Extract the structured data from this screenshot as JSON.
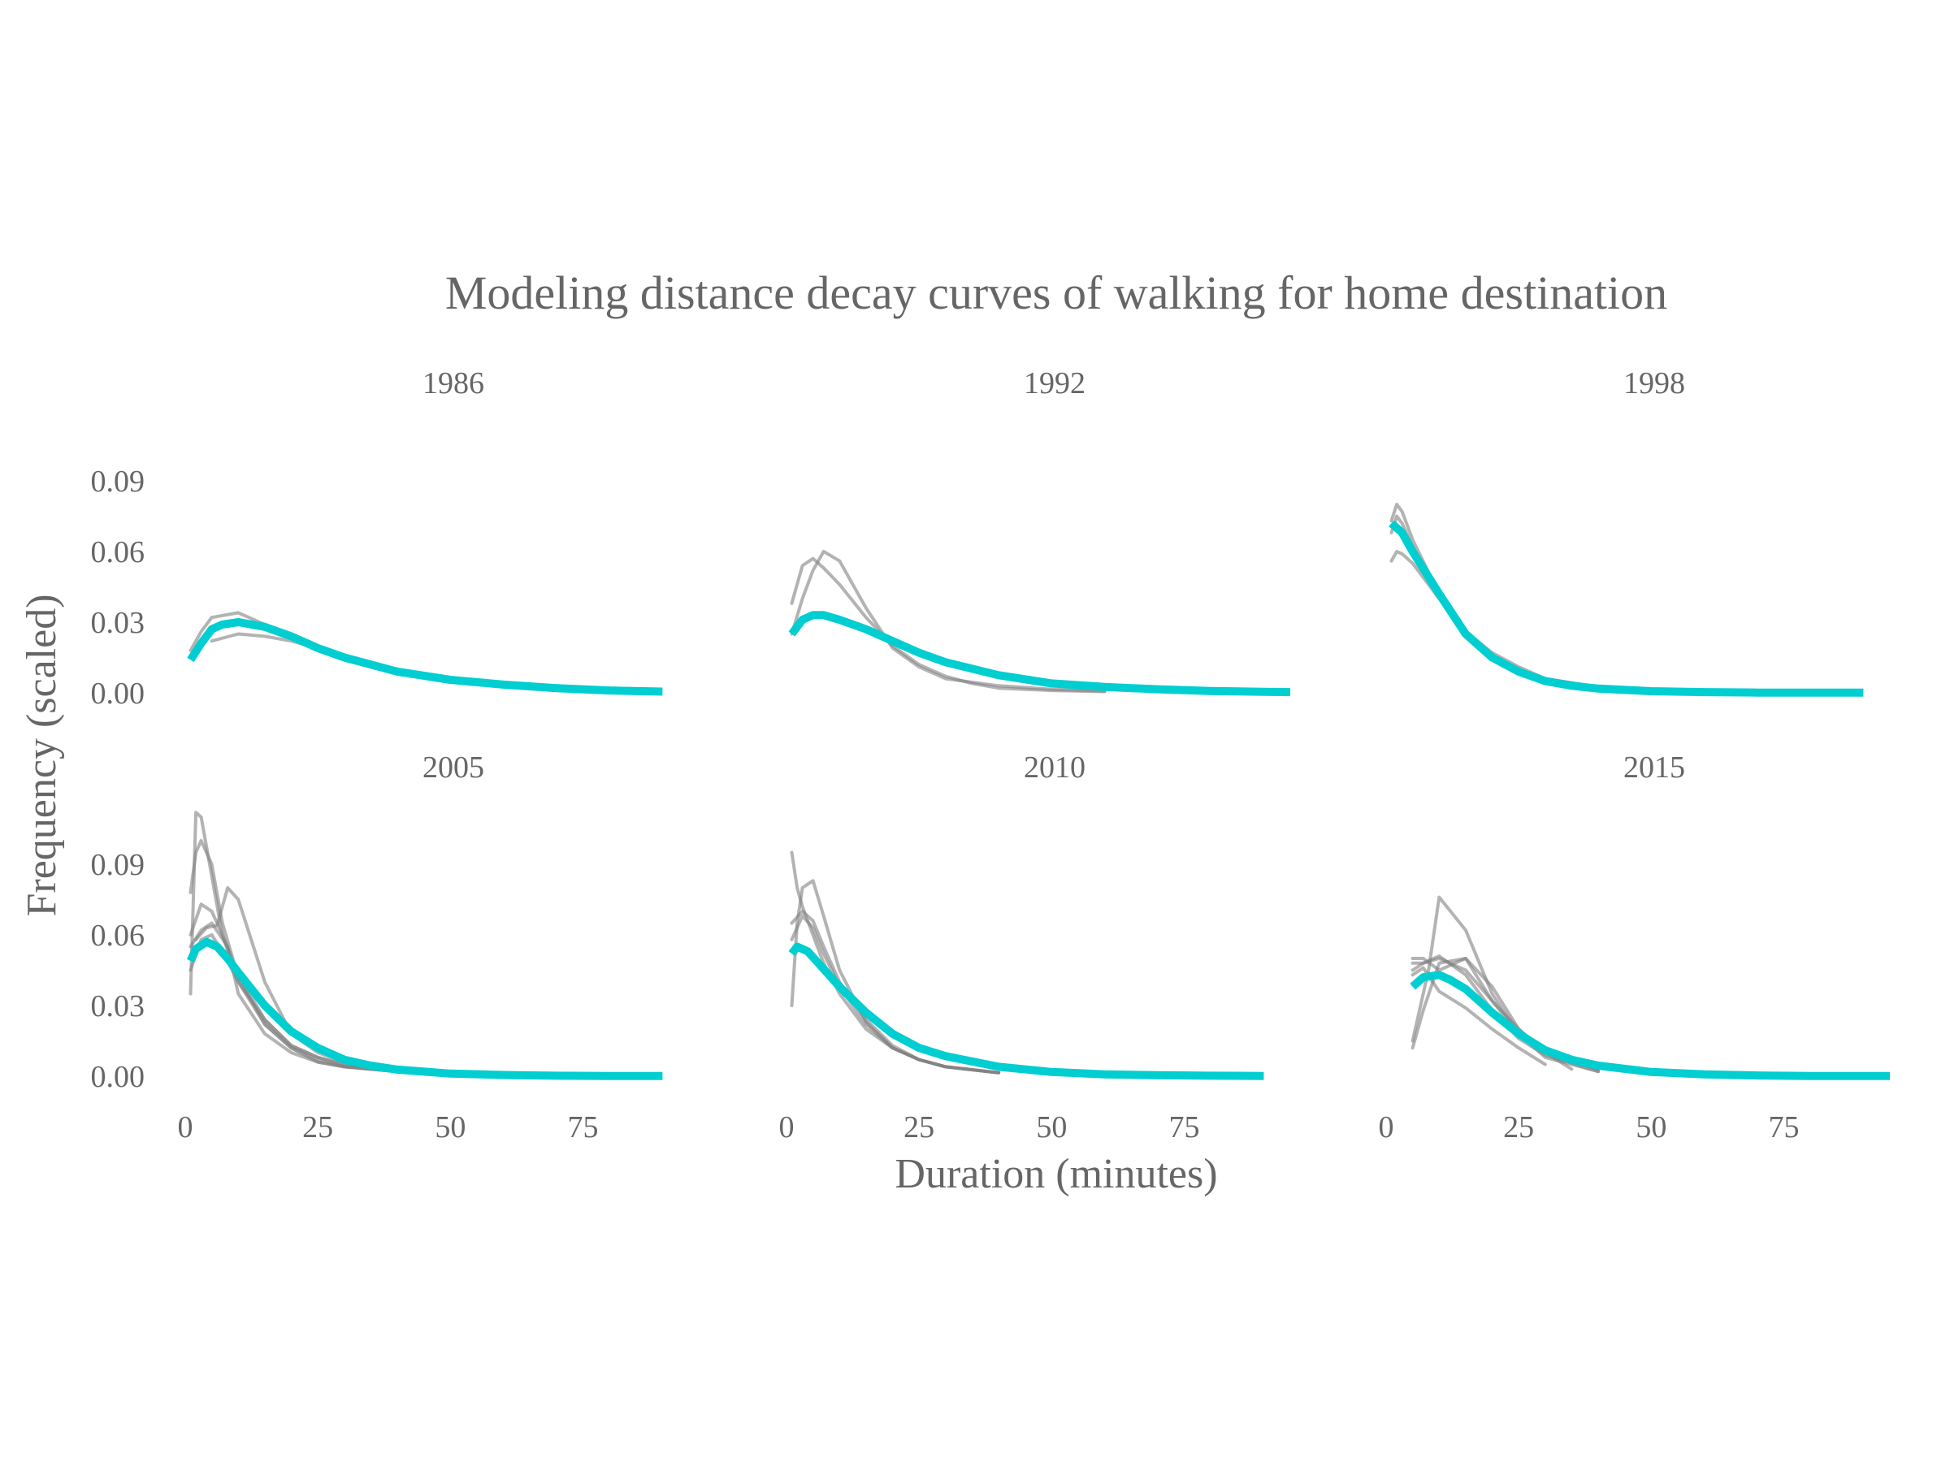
{
  "chart_data": {
    "type": "line",
    "title": "Modeling distance decay curves of walking for home destination",
    "xlabel": "Duration (minutes)",
    "ylabel": "Frequency (scaled)",
    "x_ticks": [
      0,
      25,
      50,
      75
    ],
    "y_ticks": [
      0.0,
      0.03,
      0.06,
      0.09
    ],
    "y_tick_labels": [
      "0.00",
      "0.03",
      "0.06",
      "0.09"
    ],
    "x_range": [
      0,
      95
    ],
    "y_range": [
      0,
      0.115
    ],
    "grid": false,
    "legend": "none",
    "colors": {
      "model": "#00CED1",
      "observed": "#808080"
    },
    "panels": [
      {
        "label": "1986",
        "model": {
          "x": [
            1,
            3,
            5,
            7,
            10,
            15,
            20,
            25,
            30,
            35,
            40,
            50,
            60,
            70,
            80,
            90
          ],
          "y": [
            0.014,
            0.021,
            0.027,
            0.029,
            0.03,
            0.028,
            0.024,
            0.019,
            0.015,
            0.012,
            0.009,
            0.0055,
            0.0035,
            0.002,
            0.001,
            0.0005
          ]
        },
        "observed": [
          {
            "x": [
              1,
              3,
              5,
              10,
              15,
              20,
              25,
              30,
              40,
              50,
              60,
              70,
              80
            ],
            "y": [
              0.018,
              0.026,
              0.032,
              0.034,
              0.029,
              0.024,
              0.019,
              0.015,
              0.01,
              0.006,
              0.004,
              0.002,
              0.001
            ]
          },
          {
            "x": [
              1,
              3,
              5,
              10,
              15,
              20,
              25,
              30,
              40,
              50,
              60
            ],
            "y": [
              0.015,
              0.022,
              0.028,
              0.031,
              0.028,
              0.024,
              0.019,
              0.015,
              0.01,
              0.006,
              0.003
            ]
          },
          {
            "x": [
              5,
              10,
              15,
              20,
              25,
              30,
              40,
              50
            ],
            "y": [
              0.022,
              0.025,
              0.024,
              0.022,
              0.019,
              0.015,
              0.009,
              0.006
            ]
          }
        ]
      },
      {
        "label": "1992",
        "model": {
          "x": [
            1,
            3,
            5,
            7,
            10,
            15,
            20,
            25,
            30,
            40,
            50,
            60,
            70,
            80,
            90,
            95
          ],
          "y": [
            0.025,
            0.031,
            0.033,
            0.033,
            0.031,
            0.027,
            0.022,
            0.017,
            0.013,
            0.0075,
            0.004,
            0.0025,
            0.0015,
            0.0008,
            0.0004,
            0.0003
          ]
        },
        "observed": [
          {
            "x": [
              1,
              3,
              5,
              7,
              10,
              15,
              20,
              25,
              30,
              35,
              40,
              50,
              60
            ],
            "y": [
              0.038,
              0.054,
              0.057,
              0.053,
              0.046,
              0.032,
              0.02,
              0.012,
              0.007,
              0.004,
              0.002,
              0.001,
              0.0005
            ]
          },
          {
            "x": [
              1,
              3,
              5,
              7,
              10,
              15,
              20,
              25,
              30,
              40,
              50,
              60
            ],
            "y": [
              0.025,
              0.04,
              0.052,
              0.06,
              0.056,
              0.036,
              0.019,
              0.011,
              0.006,
              0.003,
              0.0015,
              0.0008
            ]
          }
        ]
      },
      {
        "label": "1998",
        "model": {
          "x": [
            1,
            3,
            5,
            10,
            15,
            20,
            25,
            30,
            35,
            40,
            50,
            60,
            70,
            80,
            90
          ],
          "y": [
            0.072,
            0.068,
            0.06,
            0.042,
            0.025,
            0.015,
            0.009,
            0.005,
            0.003,
            0.0018,
            0.0007,
            0.0003,
            0.0001,
            0.0001,
            0.0001
          ]
        },
        "observed": [
          {
            "x": [
              1,
              2,
              3,
              5,
              10,
              15,
              20,
              25,
              30,
              40,
              50,
              60
            ],
            "y": [
              0.073,
              0.08,
              0.077,
              0.065,
              0.042,
              0.025,
              0.016,
              0.01,
              0.006,
              0.0025,
              0.001,
              0.0003
            ]
          },
          {
            "x": [
              1,
              2,
              3,
              5,
              10,
              15,
              20,
              25,
              30,
              40,
              50
            ],
            "y": [
              0.056,
              0.06,
              0.059,
              0.055,
              0.04,
              0.026,
              0.017,
              0.011,
              0.006,
              0.0025,
              0.001
            ]
          },
          {
            "x": [
              1,
              2,
              3,
              5,
              10,
              15,
              20,
              25,
              30,
              40
            ],
            "y": [
              0.068,
              0.075,
              0.072,
              0.062,
              0.041,
              0.025,
              0.015,
              0.009,
              0.005,
              0.002
            ]
          }
        ]
      },
      {
        "label": "2005",
        "model": {
          "x": [
            1,
            2,
            4,
            6,
            8,
            10,
            15,
            20,
            25,
            30,
            35,
            40,
            50,
            60,
            70,
            80,
            90
          ],
          "y": [
            0.049,
            0.054,
            0.057,
            0.055,
            0.05,
            0.044,
            0.03,
            0.019,
            0.012,
            0.007,
            0.0045,
            0.0028,
            0.0011,
            0.0005,
            0.0002,
            0.0001,
            0.0001
          ]
        },
        "observed": [
          {
            "x": [
              1,
              2,
              3,
              5,
              7,
              10,
              15,
              20,
              25,
              30,
              40
            ],
            "y": [
              0.035,
              0.112,
              0.11,
              0.085,
              0.06,
              0.04,
              0.022,
              0.012,
              0.006,
              0.004,
              0.002
            ]
          },
          {
            "x": [
              1,
              2,
              3,
              5,
              7,
              10,
              15,
              20,
              25,
              30,
              40
            ],
            "y": [
              0.078,
              0.095,
              0.1,
              0.09,
              0.065,
              0.042,
              0.022,
              0.012,
              0.007,
              0.004,
              0.002
            ]
          },
          {
            "x": [
              2,
              4,
              6,
              8,
              10,
              15,
              20,
              25,
              30,
              40
            ],
            "y": [
              0.058,
              0.063,
              0.064,
              0.08,
              0.075,
              0.04,
              0.018,
              0.01,
              0.006,
              0.002
            ]
          },
          {
            "x": [
              1,
              3,
              5,
              7,
              10,
              15,
              20,
              25,
              30,
              40
            ],
            "y": [
              0.06,
              0.073,
              0.07,
              0.06,
              0.043,
              0.024,
              0.013,
              0.008,
              0.005,
              0.002
            ]
          },
          {
            "x": [
              1,
              3,
              5,
              8,
              10,
              15,
              20,
              25,
              30,
              40
            ],
            "y": [
              0.055,
              0.062,
              0.065,
              0.055,
              0.035,
              0.018,
              0.01,
              0.006,
              0.004,
              0.002
            ]
          },
          {
            "x": [
              1,
              3,
              5,
              7,
              10,
              15,
              20,
              25,
              30,
              40
            ],
            "y": [
              0.045,
              0.058,
              0.06,
              0.053,
              0.04,
              0.024,
              0.013,
              0.008,
              0.005,
              0.002
            ]
          }
        ]
      },
      {
        "label": "2010",
        "model": {
          "x": [
            1,
            2,
            4,
            6,
            8,
            10,
            15,
            20,
            25,
            30,
            40,
            50,
            60,
            70,
            80,
            90
          ],
          "y": [
            0.052,
            0.055,
            0.053,
            0.048,
            0.043,
            0.038,
            0.027,
            0.018,
            0.012,
            0.0085,
            0.004,
            0.0018,
            0.0008,
            0.0004,
            0.0002,
            0.0001
          ]
        },
        "observed": [
          {
            "x": [
              1,
              2,
              3,
              5,
              7,
              10,
              15,
              20,
              25,
              30,
              40
            ],
            "y": [
              0.095,
              0.08,
              0.072,
              0.06,
              0.048,
              0.035,
              0.02,
              0.012,
              0.007,
              0.004,
              0.0015
            ]
          },
          {
            "x": [
              1,
              2,
              3,
              5,
              7,
              10,
              15,
              20,
              25,
              30,
              40
            ],
            "y": [
              0.03,
              0.065,
              0.08,
              0.083,
              0.068,
              0.045,
              0.023,
              0.012,
              0.007,
              0.004,
              0.0015
            ]
          },
          {
            "x": [
              1,
              3,
              5,
              7,
              10,
              15,
              20,
              25,
              30,
              40
            ],
            "y": [
              0.065,
              0.07,
              0.066,
              0.055,
              0.04,
              0.024,
              0.013,
              0.007,
              0.004,
              0.0015
            ]
          },
          {
            "x": [
              1,
              3,
              5,
              7,
              10,
              15,
              20,
              25,
              30,
              40
            ],
            "y": [
              0.058,
              0.068,
              0.063,
              0.052,
              0.038,
              0.022,
              0.012,
              0.007,
              0.004,
              0.0015
            ]
          }
        ]
      },
      {
        "label": "2015",
        "model": {
          "x": [
            5,
            7,
            10,
            12,
            15,
            20,
            25,
            30,
            35,
            40,
            50,
            60,
            70,
            80,
            90,
            95
          ],
          "y": [
            0.038,
            0.042,
            0.043,
            0.041,
            0.037,
            0.027,
            0.018,
            0.011,
            0.007,
            0.0045,
            0.0018,
            0.0008,
            0.0003,
            0.0001,
            0.0001,
            0.0001
          ]
        },
        "observed": [
          {
            "x": [
              5,
              8,
              10,
              15,
              20,
              25,
              30,
              40
            ],
            "y": [
              0.015,
              0.045,
              0.076,
              0.062,
              0.035,
              0.018,
              0.008,
              0.002
            ]
          },
          {
            "x": [
              5,
              7,
              10,
              15,
              20,
              25,
              30,
              40
            ],
            "y": [
              0.012,
              0.028,
              0.048,
              0.05,
              0.038,
              0.02,
              0.01,
              0.003
            ]
          },
          {
            "x": [
              5,
              7,
              10,
              15,
              20,
              25,
              30,
              40
            ],
            "y": [
              0.048,
              0.048,
              0.051,
              0.043,
              0.028,
              0.016,
              0.009,
              0.002
            ]
          },
          {
            "x": [
              5,
              7,
              10,
              15,
              20,
              25,
              30,
              40
            ],
            "y": [
              0.045,
              0.048,
              0.05,
              0.045,
              0.032,
              0.018,
              0.01,
              0.003
            ]
          },
          {
            "x": [
              5,
              7,
              10,
              15,
              20,
              25,
              30
            ],
            "y": [
              0.043,
              0.046,
              0.036,
              0.029,
              0.02,
              0.012,
              0.005
            ]
          },
          {
            "x": [
              5,
              7,
              10,
              15,
              20,
              25,
              30,
              35
            ],
            "y": [
              0.05,
              0.05,
              0.045,
              0.05,
              0.032,
              0.02,
              0.01,
              0.003
            ]
          }
        ]
      }
    ]
  }
}
